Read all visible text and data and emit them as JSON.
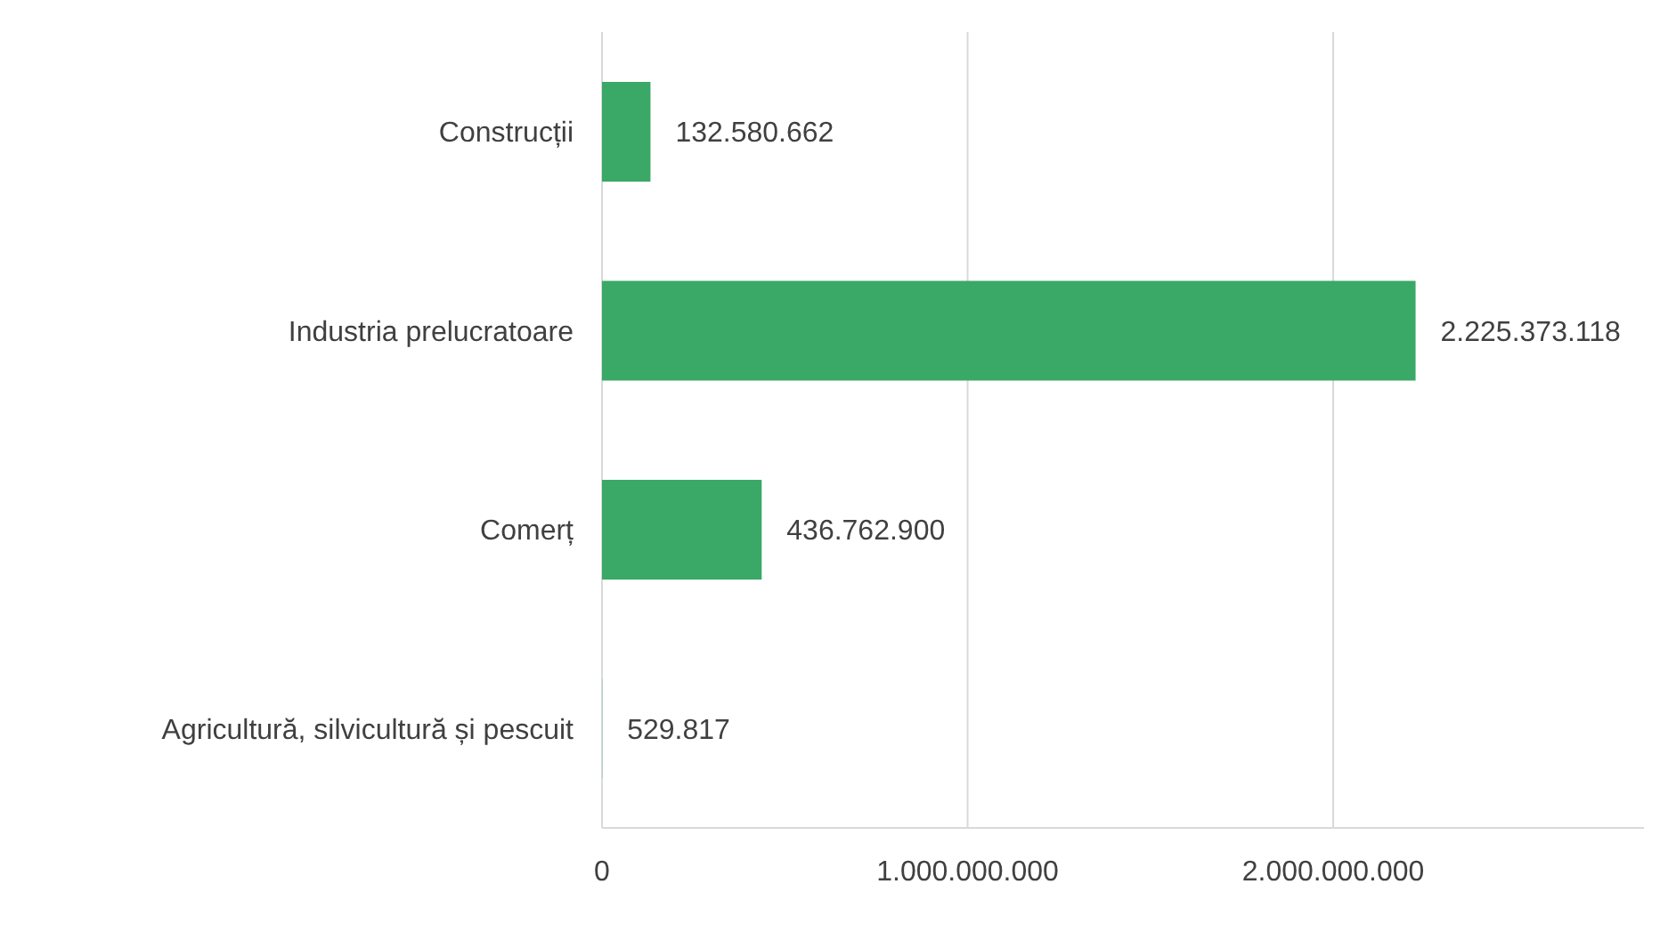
{
  "chart_data": {
    "type": "bar",
    "orientation": "horizontal",
    "categories": [
      "Construcții",
      "Industria prelucratoare",
      "Comerț",
      "Agricultură, silvicultură și pescuit"
    ],
    "values": [
      132580662,
      2225373118,
      436762900,
      529817
    ],
    "value_labels": [
      "132.580.662",
      "2.225.373.118",
      "436.762.900",
      "529.817"
    ],
    "color": "#3aa866",
    "xlim": [
      0,
      2850000000
    ],
    "xticks": [
      0,
      {
        "value": 1000000000,
        "label": "1.000.000.000"
      },
      {
        "value": 2000000000,
        "label": "2.000.000.000"
      }
    ],
    "grid": "x"
  }
}
